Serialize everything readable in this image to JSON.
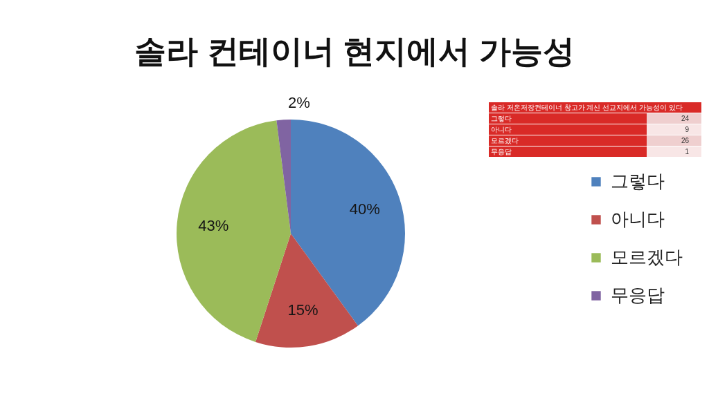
{
  "chart_data": [
    {
      "type": "pie",
      "title": "솔라 컨테이너 현지에서 가능성",
      "categories": [
        "그렇다",
        "아니다",
        "모르겠다",
        "무응답"
      ],
      "values": [
        40,
        15,
        43,
        2
      ],
      "colors": [
        "#4f81bd",
        "#c0504d",
        "#9bbb59",
        "#8064a2"
      ],
      "value_labels": [
        "40%",
        "15%",
        "43%",
        "2%"
      ],
      "legend": "right"
    },
    {
      "type": "other",
      "title": "솔라 저온저장컨테이너 창고가 계신 선교지에서 가능성이 있다",
      "categories": [
        "그렇다",
        "아니다",
        "모르겠다",
        "무응답"
      ],
      "values": [
        24,
        9,
        26,
        1
      ],
      "data_labels": true
    }
  ]
}
